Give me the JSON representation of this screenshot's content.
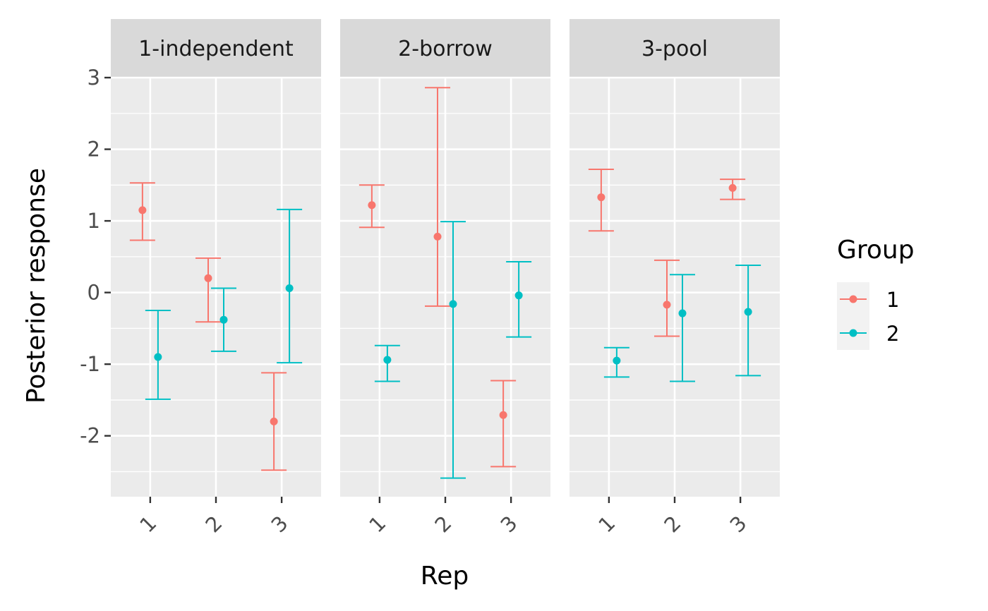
{
  "chart_data": {
    "type": "errorbar",
    "xlabel": "Rep",
    "ylabel": "Posterior response",
    "ylim": [
      -2.85,
      3.0
    ],
    "y_ticks": [
      3,
      2,
      1,
      0,
      -1,
      -2
    ],
    "y_tick_labels": [
      "3",
      "2",
      "1",
      "0",
      "-1",
      "-2"
    ],
    "x_categories": [
      "1",
      "2",
      "3"
    ],
    "grid": true,
    "legend": {
      "title": "Group",
      "position": "right",
      "entries": [
        {
          "label": "1",
          "color": "#F8766D"
        },
        {
          "label": "2",
          "color": "#00BFC4"
        }
      ]
    },
    "panels": [
      {
        "title": "1-independent",
        "series": [
          {
            "group": "1",
            "points": [
              {
                "rep": "1",
                "y": 1.15,
                "lower": 0.73,
                "upper": 1.53
              },
              {
                "rep": "2",
                "y": 0.2,
                "lower": -0.41,
                "upper": 0.48
              },
              {
                "rep": "3",
                "y": -1.8,
                "lower": -2.48,
                "upper": -1.12
              }
            ]
          },
          {
            "group": "2",
            "points": [
              {
                "rep": "1",
                "y": -0.9,
                "lower": -1.49,
                "upper": -0.25
              },
              {
                "rep": "2",
                "y": -0.38,
                "lower": -0.82,
                "upper": 0.06
              },
              {
                "rep": "3",
                "y": 0.06,
                "lower": -0.98,
                "upper": 1.16
              }
            ]
          }
        ]
      },
      {
        "title": "2-borrow",
        "series": [
          {
            "group": "1",
            "points": [
              {
                "rep": "1",
                "y": 1.22,
                "lower": 0.91,
                "upper": 1.5
              },
              {
                "rep": "2",
                "y": 0.78,
                "lower": -0.19,
                "upper": 2.86
              },
              {
                "rep": "3",
                "y": -1.71,
                "lower": -2.43,
                "upper": -1.23
              }
            ]
          },
          {
            "group": "2",
            "points": [
              {
                "rep": "1",
                "y": -0.94,
                "lower": -1.24,
                "upper": -0.74
              },
              {
                "rep": "2",
                "y": -0.16,
                "lower": -2.59,
                "upper": 0.99
              },
              {
                "rep": "3",
                "y": -0.04,
                "lower": -0.62,
                "upper": 0.43
              }
            ]
          }
        ]
      },
      {
        "title": "3-pool",
        "series": [
          {
            "group": "1",
            "points": [
              {
                "rep": "1",
                "y": 1.33,
                "lower": 0.86,
                "upper": 1.72
              },
              {
                "rep": "2",
                "y": -0.17,
                "lower": -0.61,
                "upper": 0.45
              },
              {
                "rep": "3",
                "y": 1.46,
                "lower": 1.3,
                "upper": 1.58
              }
            ]
          },
          {
            "group": "2",
            "points": [
              {
                "rep": "1",
                "y": -0.95,
                "lower": -1.18,
                "upper": -0.77
              },
              {
                "rep": "2",
                "y": -0.29,
                "lower": -1.24,
                "upper": 0.25
              },
              {
                "rep": "3",
                "y": -0.27,
                "lower": -1.16,
                "upper": 0.38
              }
            ]
          }
        ]
      }
    ]
  }
}
